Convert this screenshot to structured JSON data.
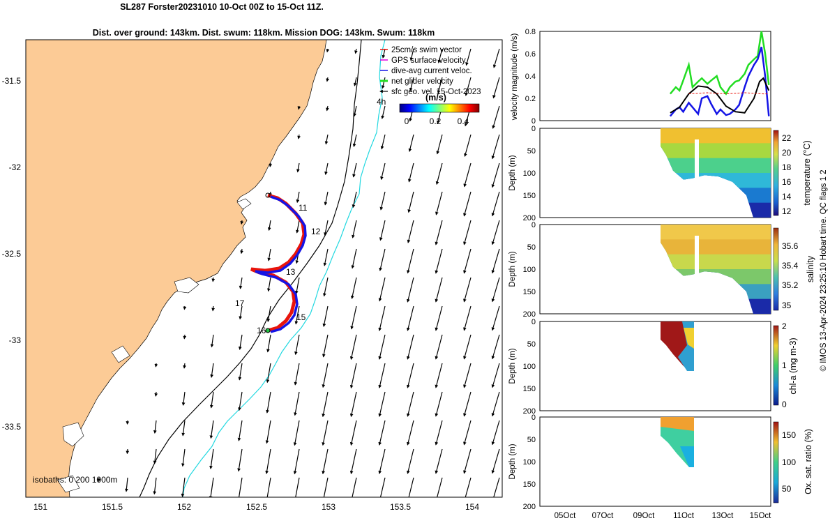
{
  "title": {
    "line1": "SL287 Forster20231010 10-Oct 00Z to 15-Oct 11Z.",
    "line2": "Dist. over ground: 143km. Dist. swum: 118km. Mission DOG: 143km. Swum: 118km"
  },
  "map": {
    "xticks": [
      "151",
      "151.5",
      "152",
      "152.5",
      "153",
      "153.5",
      "154"
    ],
    "yticks": [
      "-31.5",
      "-32",
      "-32.5",
      "-33",
      "-33.5"
    ],
    "legend": [
      "25cm/s swim vector",
      "GPS surface velocity",
      "dive-avg current veloc.",
      "net glider velocity",
      "sfc geo. vel. 15-Oct-2023"
    ],
    "time_label": "4h",
    "colorbar_unit": "(m/s)",
    "colorbar_ticks": [
      "0",
      "0.2",
      "0.4"
    ],
    "day_labels": [
      "11",
      "12",
      "13",
      "15",
      "16",
      "17"
    ],
    "isobaths_label": "isobaths: 0  200  1000m",
    "colors": {
      "land": "#fccb96",
      "isobath_200": "#000000",
      "isobath_1000": "#20d8e0",
      "track_red": "#e8140c",
      "track_blue": "#1414e6"
    }
  },
  "panels": {
    "velocity_ylabel": "velocity magnitude (m/s)",
    "velocity_yticks": [
      "0",
      "0.2",
      "0.4",
      "0.6",
      "0.8"
    ],
    "depth_ylabel": "Depth (m)",
    "depth_ticks": [
      "0",
      "50",
      "100",
      "150",
      "200"
    ],
    "xticks": [
      "05Oct",
      "07Oct",
      "09Oct",
      "11Oct",
      "13Oct",
      "15Oct"
    ],
    "temperature": {
      "label": "temperature (°C)",
      "ticks": [
        "12",
        "14",
        "16",
        "18",
        "20",
        "22"
      ]
    },
    "salinity": {
      "label": "salinity",
      "ticks": [
        "35",
        "35.2",
        "35.4",
        "35.6"
      ]
    },
    "chla": {
      "label": "chl-a (mg m-3)",
      "ticks": [
        "0",
        "1",
        "2"
      ]
    },
    "oxygen": {
      "label": "Ox. sat. ratio (%)",
      "ticks": [
        "50",
        "100",
        "150"
      ]
    }
  },
  "footer": "© IMOS 13-Apr-2024 23:25:10 Hobart time. QC flags 1  2",
  "chart_data": [
    {
      "type": "scatter",
      "title": "SL287 Forster20231010 10-Oct 00Z to 15-Oct 11Z.",
      "xlim": [
        150.9,
        154.2
      ],
      "ylim": [
        -33.9,
        -31.3
      ],
      "track": [
        [
          152.58,
          -32.16
        ],
        [
          152.62,
          -32.18
        ],
        [
          152.66,
          -32.22
        ],
        [
          152.72,
          -32.27
        ],
        [
          152.77,
          -32.31
        ],
        [
          152.8,
          -32.34
        ],
        [
          152.79,
          -32.42
        ],
        [
          152.75,
          -32.5
        ],
        [
          152.7,
          -32.56
        ],
        [
          152.66,
          -32.6
        ],
        [
          152.55,
          -32.61
        ],
        [
          152.45,
          -32.6
        ],
        [
          152.5,
          -32.62
        ],
        [
          152.62,
          -32.66
        ],
        [
          152.72,
          -32.71
        ],
        [
          152.76,
          -32.78
        ],
        [
          152.74,
          -32.85
        ],
        [
          152.7,
          -32.9
        ],
        [
          152.62,
          -32.94
        ],
        [
          152.56,
          -32.96
        ]
      ],
      "day_positions": [
        {
          "label": "11",
          "lon": 152.8,
          "lat": -32.22
        },
        {
          "label": "12",
          "lon": 152.85,
          "lat": -32.38
        },
        {
          "label": "13",
          "lon": 152.67,
          "lat": -32.62
        },
        {
          "label": "15",
          "lon": 152.8,
          "lat": -32.87
        },
        {
          "label": "16",
          "lon": 152.55,
          "lat": -32.95
        },
        {
          "label": "17",
          "lon": 152.33,
          "lat": -32.79
        }
      ],
      "colorbar_range": [
        0,
        0.5
      ]
    },
    {
      "type": "line",
      "ylabel": "velocity magnitude (m/s)",
      "xlim": [
        "03Oct",
        "15.4Oct"
      ],
      "ylim": [
        0,
        0.8
      ],
      "series": [
        {
          "x": [
            10.0,
            10.3,
            10.5,
            10.7,
            11.0,
            11.2,
            11.5,
            11.7,
            12.0,
            12.2,
            12.5,
            12.7,
            13.0,
            13.2,
            13.5,
            13.7,
            14.0,
            14.2,
            14.5,
            14.7,
            14.9,
            15.1,
            15.3
          ],
          "values": [
            0.24,
            0.3,
            0.27,
            0.36,
            0.5,
            0.3,
            0.35,
            0.38,
            0.33,
            0.36,
            0.4,
            0.3,
            0.24,
            0.3,
            0.35,
            0.36,
            0.42,
            0.5,
            0.55,
            0.58,
            0.8,
            0.6,
            0.32
          ]
        },
        {
          "x": [
            10.0,
            10.3,
            10.5,
            10.7,
            11.0,
            11.2,
            11.5,
            11.7,
            12.0,
            12.2,
            12.5,
            12.7,
            13.0,
            13.2,
            13.5,
            13.7,
            14.0,
            14.2,
            14.5,
            14.7,
            14.9,
            15.1,
            15.3
          ],
          "values": [
            0.04,
            0.1,
            0.12,
            0.08,
            0.16,
            0.12,
            0.06,
            0.2,
            0.22,
            0.15,
            0.06,
            0.1,
            0.05,
            0.06,
            0.1,
            0.14,
            0.3,
            0.4,
            0.5,
            0.55,
            0.66,
            0.4,
            0.04
          ]
        },
        {
          "x": [
            10.0,
            10.5,
            11.0,
            11.5,
            12.0,
            12.5,
            13.0,
            13.5,
            14.0,
            14.5,
            14.8,
            15.0,
            15.3
          ],
          "values": [
            0.07,
            0.12,
            0.24,
            0.31,
            0.3,
            0.24,
            0.13,
            0.08,
            0.07,
            0.2,
            0.35,
            0.38,
            0.27
          ]
        },
        {
          "x": [
            11.0,
            12.0,
            13.0,
            14.0,
            15.0,
            15.3
          ],
          "values": [
            0.24,
            0.25,
            0.24,
            0.25,
            0.24,
            0.24
          ]
        }
      ]
    },
    {
      "type": "heatmap",
      "ylabel": "Depth (m)",
      "colorbar_label": "temperature (°C)",
      "clim": [
        12,
        22.5
      ],
      "ylim": [
        200,
        0
      ],
      "xlim": [
        "03Oct",
        "15.4Oct"
      ]
    },
    {
      "type": "heatmap",
      "ylabel": "Depth (m)",
      "colorbar_label": "salinity",
      "clim": [
        34.9,
        35.75
      ],
      "ylim": [
        200,
        0
      ],
      "xlim": [
        "03Oct",
        "15.4Oct"
      ]
    },
    {
      "type": "heatmap",
      "ylabel": "Depth (m)",
      "colorbar_label": "chl-a (mg m-3)",
      "clim": [
        0,
        2
      ],
      "ylim": [
        200,
        0
      ],
      "xlim": [
        "03Oct",
        "15.4Oct"
      ]
    },
    {
      "type": "heatmap",
      "ylabel": "Depth (m)",
      "colorbar_label": "Ox. sat. ratio (%)",
      "clim": [
        20,
        175
      ],
      "ylim": [
        200,
        0
      ],
      "xlim": [
        "03Oct",
        "15.4Oct"
      ]
    }
  ]
}
